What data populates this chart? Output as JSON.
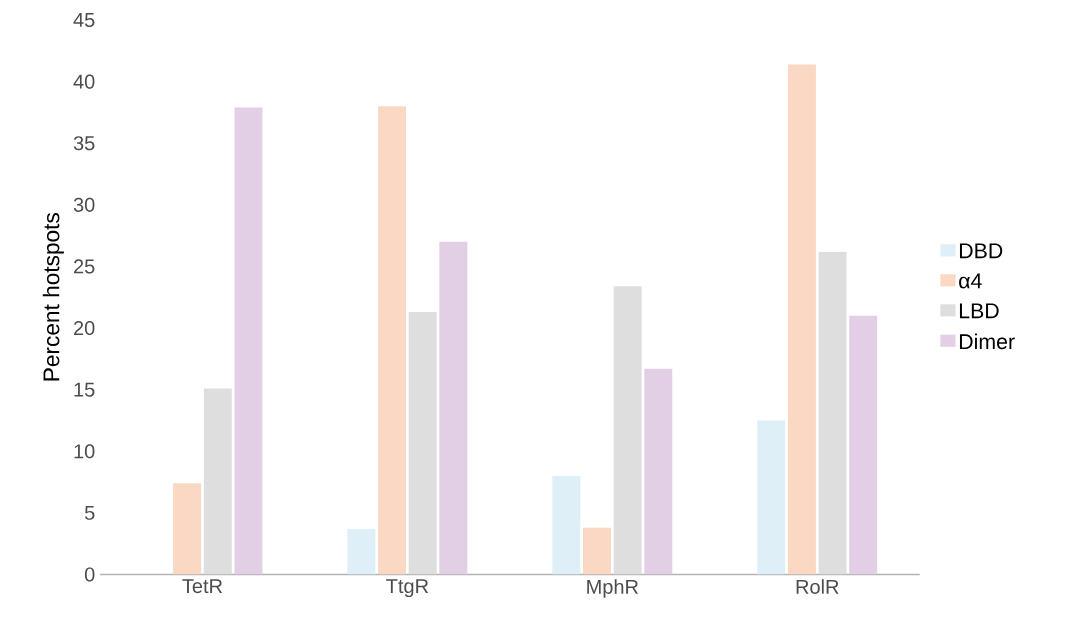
{
  "chart_data": {
    "type": "bar",
    "ylabel": "Percent hotspots",
    "categories": [
      "TetR",
      "TtgR",
      "MphR",
      "RolR"
    ],
    "series": [
      {
        "name": "DBD",
        "color": "#deeff7",
        "values": [
          0,
          3.7,
          8.0,
          12.5
        ]
      },
      {
        "name": "α4",
        "color": "#fbd8c4",
        "values": [
          7.4,
          38.0,
          3.8,
          41.4
        ]
      },
      {
        "name": "LBD",
        "color": "#dedede",
        "values": [
          15.1,
          21.3,
          23.4,
          26.2
        ]
      },
      {
        "name": "Dimer",
        "color": "#e2cfe6",
        "values": [
          37.9,
          27.0,
          16.7,
          21.0
        ]
      }
    ],
    "ylim": [
      0,
      45
    ],
    "yticks": [
      0,
      5,
      10,
      15,
      20,
      25,
      30,
      35,
      40,
      45
    ],
    "grid": false,
    "legend": "right"
  }
}
